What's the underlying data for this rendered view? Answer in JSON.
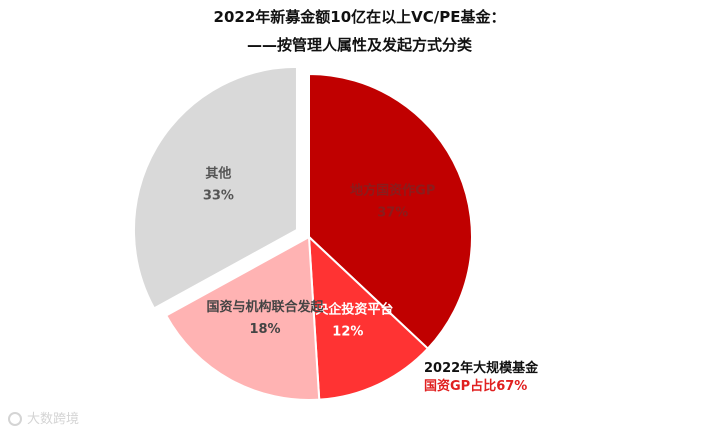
{
  "title_line1": "2022年新募金额10亿在以上VC/PE基金：",
  "title_line2": "——按管理人属性及发起方式分类",
  "chart_data": {
    "type": "pie",
    "title": "2022年新募金额10亿在以上VC/PE基金：——按管理人属性及发起方式分类",
    "slices": [
      {
        "label": "地方国资作GP",
        "value": 37,
        "value_label": "37%",
        "color": "#c00000",
        "exploded": false
      },
      {
        "label": "国央企投资平台",
        "value": 12,
        "value_label": "12%",
        "color": "#ff3333",
        "exploded": false
      },
      {
        "label": "国资与机构联合发起",
        "value": 18,
        "value_label": "18%",
        "color": "#ffb3b3",
        "exploded": false
      },
      {
        "label": "其他",
        "value": 33,
        "value_label": "33%",
        "color": "#d9d9d9",
        "exploded": true
      }
    ],
    "annotation_line1": "2022年大规模基金",
    "annotation_line2": "国资GP占比67%",
    "annotation_color": "#e02020"
  },
  "watermark": "大数跨境"
}
